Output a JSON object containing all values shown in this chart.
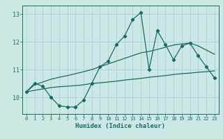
{
  "title": "",
  "xlabel": "Humidex (Indice chaleur)",
  "ylabel": "",
  "bg_color": "#cce8e4",
  "grid_color": "#aad4ce",
  "line_color": "#1a6b5e",
  "x": [
    0,
    1,
    2,
    3,
    4,
    5,
    6,
    7,
    8,
    9,
    10,
    11,
    12,
    13,
    14,
    15,
    16,
    17,
    18,
    19,
    20,
    21,
    22,
    23
  ],
  "y_main": [
    10.2,
    10.5,
    10.4,
    10.0,
    9.7,
    9.65,
    9.65,
    9.9,
    10.5,
    11.1,
    11.3,
    11.9,
    12.2,
    12.8,
    13.05,
    11.0,
    12.4,
    11.9,
    11.35,
    11.85,
    11.95,
    11.5,
    11.1,
    10.7
  ],
  "y_trend_upper": [
    10.2,
    10.45,
    10.55,
    10.65,
    10.72,
    10.78,
    10.85,
    10.92,
    11.0,
    11.1,
    11.2,
    11.3,
    11.4,
    11.5,
    11.6,
    11.65,
    11.72,
    11.8,
    11.88,
    11.92,
    11.95,
    11.85,
    11.7,
    11.55
  ],
  "y_trend_lower": [
    10.2,
    10.25,
    10.3,
    10.35,
    10.38,
    10.4,
    10.42,
    10.45,
    10.5,
    10.52,
    10.55,
    10.58,
    10.62,
    10.65,
    10.68,
    10.72,
    10.75,
    10.78,
    10.82,
    10.85,
    10.87,
    10.9,
    10.92,
    10.95
  ],
  "ylim": [
    9.4,
    13.3
  ],
  "xlim": [
    -0.5,
    23.5
  ],
  "yticks": [
    10,
    11,
    12,
    13
  ],
  "xticks": [
    0,
    1,
    2,
    3,
    4,
    5,
    6,
    7,
    8,
    9,
    10,
    11,
    12,
    13,
    14,
    15,
    16,
    17,
    18,
    19,
    20,
    21,
    22,
    23
  ]
}
